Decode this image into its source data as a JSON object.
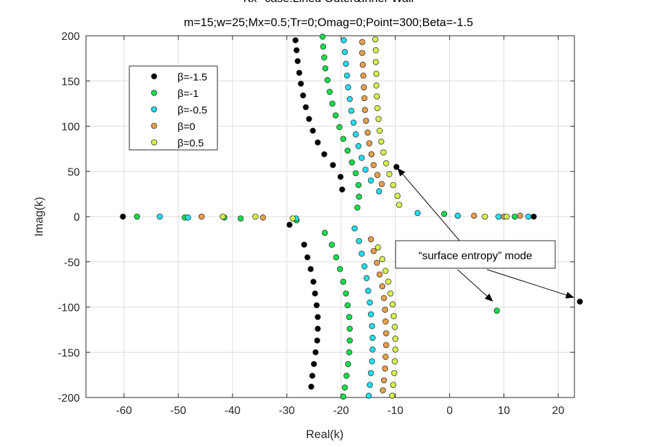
{
  "chart_data": {
    "type": "scatter",
    "title": "Kx--case:Lined Outer&Inner Wall",
    "subtitle": "m=15;w=25;Mx=0.5;Tr=0;Omag=0;Point=300;Beta=-1.5",
    "xlabel": "Real(k)",
    "ylabel": "Imag(k)",
    "xlim": [
      -67,
      23
    ],
    "ylim": [
      -200,
      200
    ],
    "xticks": [
      "-60",
      "-50",
      "-40",
      "-30",
      "-20",
      "-10",
      "0",
      "10",
      "20"
    ],
    "yticks": [
      "-200",
      "-150",
      "-100",
      "-50",
      "0",
      "50",
      "100",
      "150",
      "200"
    ],
    "grid": true,
    "legend_position": "top-left",
    "annotation": "“surface entropy” mode",
    "series": [
      {
        "name": "β=-1.5",
        "color": "#000000",
        "points": [
          [
            -60.2,
            0
          ],
          [
            -29.5,
            -9
          ],
          [
            -19.8,
            30
          ],
          [
            -20.1,
            44
          ],
          [
            -21.5,
            57
          ],
          [
            -23.1,
            69
          ],
          [
            -24.3,
            82
          ],
          [
            -25.2,
            95
          ],
          [
            -25.9,
            108
          ],
          [
            -26.5,
            121
          ],
          [
            -27,
            134
          ],
          [
            -27.4,
            147
          ],
          [
            -27.7,
            159
          ],
          [
            -28,
            172
          ],
          [
            -28.2,
            184
          ],
          [
            -28.4,
            195
          ],
          [
            -9.8,
            55
          ],
          [
            1.5,
            1
          ],
          [
            15.5,
            0
          ],
          [
            24,
            -94
          ],
          [
            -26.8,
            -31
          ],
          [
            -26.2,
            -45
          ],
          [
            -25.6,
            -58
          ],
          [
            -25.1,
            -72
          ],
          [
            -24.8,
            -85
          ],
          [
            -24.5,
            -98
          ],
          [
            -24.3,
            -111
          ],
          [
            -24.3,
            -124
          ],
          [
            -24.4,
            -137
          ],
          [
            -24.7,
            -150
          ],
          [
            -25,
            -163
          ],
          [
            -25.3,
            -176
          ],
          [
            -25.5,
            -188
          ]
        ]
      },
      {
        "name": "β=-1",
        "color": "#12e04a",
        "points": [
          [
            -57.6,
            0
          ],
          [
            -48.8,
            -1
          ],
          [
            -41.5,
            -1
          ],
          [
            -38.5,
            -2
          ],
          [
            -28.2,
            -4
          ],
          [
            -17,
            10
          ],
          [
            -16.7,
            22
          ],
          [
            -16.8,
            35
          ],
          [
            -17.3,
            48
          ],
          [
            -18,
            60
          ],
          [
            -18.8,
            73
          ],
          [
            -19.6,
            86
          ],
          [
            -20.3,
            99
          ],
          [
            -21,
            112
          ],
          [
            -21.6,
            125
          ],
          [
            -22.1,
            138
          ],
          [
            -22.5,
            151
          ],
          [
            -22.9,
            164
          ],
          [
            -23.1,
            176
          ],
          [
            -23.3,
            188
          ],
          [
            -23.4,
            199
          ],
          [
            -1,
            3
          ],
          [
            12,
            0
          ],
          [
            8.7,
            -104
          ],
          [
            -23,
            -18
          ],
          [
            -21.7,
            -31
          ],
          [
            -20.9,
            -45
          ],
          [
            -20.2,
            -58
          ],
          [
            -19.6,
            -72
          ],
          [
            -19.1,
            -85
          ],
          [
            -18.8,
            -98
          ],
          [
            -18.5,
            -111
          ],
          [
            -18.4,
            -124
          ],
          [
            -18.4,
            -137
          ],
          [
            -18.5,
            -150
          ],
          [
            -18.7,
            -163
          ],
          [
            -19,
            -176
          ],
          [
            -19.3,
            -189
          ],
          [
            -19.6,
            -199
          ]
        ]
      },
      {
        "name": "β=-0.5",
        "color": "#22dff0",
        "points": [
          [
            -53.4,
            0
          ],
          [
            -48.2,
            -1
          ],
          [
            -28.3,
            -2
          ],
          [
            -5.9,
            4
          ],
          [
            -13,
            28
          ],
          [
            -14.5,
            40
          ],
          [
            -15.5,
            52
          ],
          [
            -16.2,
            65
          ],
          [
            -16.8,
            78
          ],
          [
            -17.3,
            91
          ],
          [
            -17.7,
            104
          ],
          [
            -18.1,
            117
          ],
          [
            -18.4,
            130
          ],
          [
            -18.7,
            143
          ],
          [
            -18.9,
            156
          ],
          [
            -19.1,
            169
          ],
          [
            -19.3,
            182
          ],
          [
            -19.5,
            195
          ],
          [
            1.5,
            1
          ],
          [
            9,
            0
          ],
          [
            14.5,
            0
          ],
          [
            -17.5,
            -13
          ],
          [
            -16.7,
            -27
          ],
          [
            -16.2,
            -41
          ],
          [
            -15.7,
            -55
          ],
          [
            -15.3,
            -68
          ],
          [
            -15,
            -82
          ],
          [
            -14.7,
            -95
          ],
          [
            -14.5,
            -108
          ],
          [
            -14.3,
            -121
          ],
          [
            -14.2,
            -134
          ],
          [
            -14.2,
            -147
          ],
          [
            -14.3,
            -160
          ],
          [
            -14.5,
            -173
          ],
          [
            -14.7,
            -186
          ],
          [
            -14.9,
            -198
          ]
        ]
      },
      {
        "name": "β=0",
        "color": "#e6a04a",
        "points": [
          [
            -45.7,
            0
          ],
          [
            -34.4,
            -1
          ],
          [
            -12.5,
            36
          ],
          [
            -13.3,
            46
          ],
          [
            -14,
            57
          ],
          [
            -14.4,
            69
          ],
          [
            -14.8,
            81
          ],
          [
            -15.1,
            93
          ],
          [
            -15.4,
            106
          ],
          [
            -15.6,
            118
          ],
          [
            -15.7,
            131
          ],
          [
            -15.8,
            143
          ],
          [
            -15.9,
            156
          ],
          [
            -16,
            168
          ],
          [
            -16.1,
            181
          ],
          [
            -16.1,
            193
          ],
          [
            4.5,
            1
          ],
          [
            10,
            0
          ],
          [
            13,
            1
          ],
          [
            -14.5,
            -25
          ],
          [
            -14,
            -38
          ],
          [
            -13.4,
            -51
          ],
          [
            -12.9,
            -64
          ],
          [
            -12.4,
            -77
          ],
          [
            -12.1,
            -90
          ],
          [
            -11.9,
            -103
          ],
          [
            -11.8,
            -116
          ],
          [
            -11.7,
            -129
          ],
          [
            -11.7,
            -142
          ],
          [
            -11.8,
            -155
          ],
          [
            -11.9,
            -168
          ],
          [
            -12.1,
            -181
          ],
          [
            -12.3,
            -192
          ]
        ]
      },
      {
        "name": "β=0.5",
        "color": "#d8f24c",
        "points": [
          [
            -41.8,
            0
          ],
          [
            -35.8,
            0
          ],
          [
            -28.9,
            -2
          ],
          [
            -9.3,
            13
          ],
          [
            -9.6,
            23
          ],
          [
            -10.4,
            35
          ],
          [
            -11.1,
            47
          ],
          [
            -11.7,
            59
          ],
          [
            -12.2,
            71
          ],
          [
            -12.6,
            83
          ],
          [
            -12.9,
            95
          ],
          [
            -13.1,
            108
          ],
          [
            -13.3,
            120
          ],
          [
            -13.4,
            133
          ],
          [
            -13.5,
            145
          ],
          [
            -13.5,
            158
          ],
          [
            -13.6,
            171
          ],
          [
            -13.6,
            184
          ],
          [
            -13.7,
            196
          ],
          [
            6.5,
            0
          ],
          [
            10.5,
            0
          ],
          [
            -13.2,
            -34
          ],
          [
            -12.4,
            -47
          ],
          [
            -11.8,
            -60
          ],
          [
            -11.3,
            -72
          ],
          [
            -10.9,
            -85
          ],
          [
            -10.5,
            -97
          ],
          [
            -10.3,
            -110
          ],
          [
            -10.1,
            -122
          ],
          [
            -10,
            -135
          ],
          [
            -10,
            -147
          ],
          [
            -10.1,
            -160
          ],
          [
            -10.2,
            -173
          ],
          [
            -10.4,
            -186
          ],
          [
            -10.6,
            -198
          ]
        ]
      }
    ]
  }
}
